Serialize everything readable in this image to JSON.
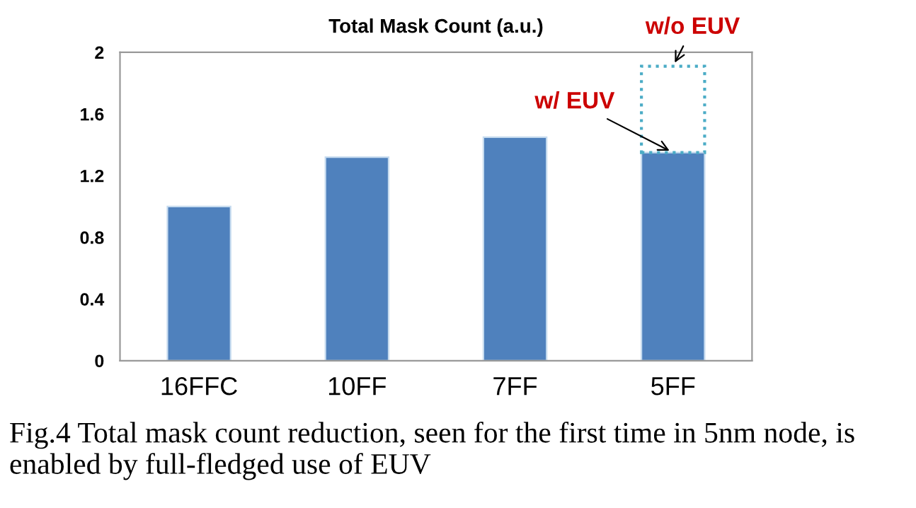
{
  "chart_data": {
    "type": "bar",
    "title": "Total Mask Count (a.u.)",
    "stacked": true,
    "categories": [
      "16FFC",
      "10FF",
      "7FF",
      "5FF"
    ],
    "series": [
      {
        "color": "#4f81bd",
        "values": [
          1.0,
          1.32,
          1.45,
          1.35
        ]
      },
      {
        "color": "#4bacc6",
        "line_style": "dotted",
        "values": [
          null,
          null,
          null,
          0.56
        ]
      }
    ],
    "ylim": [
      0,
      2
    ],
    "yticks": [
      0,
      0.4,
      0.8,
      1.2,
      1.6,
      2
    ],
    "grid": false,
    "annotations": [
      {
        "text": "w/o EUV",
        "x": "5FF",
        "y": 1.91
      },
      {
        "text": "w/ EUV",
        "x": "5FF",
        "y": 1.35
      },
      "Fig.4 Total mask count reduction, seen for the first time in 5nm node, is enabled by full-fledged use of EUV"
    ]
  }
}
